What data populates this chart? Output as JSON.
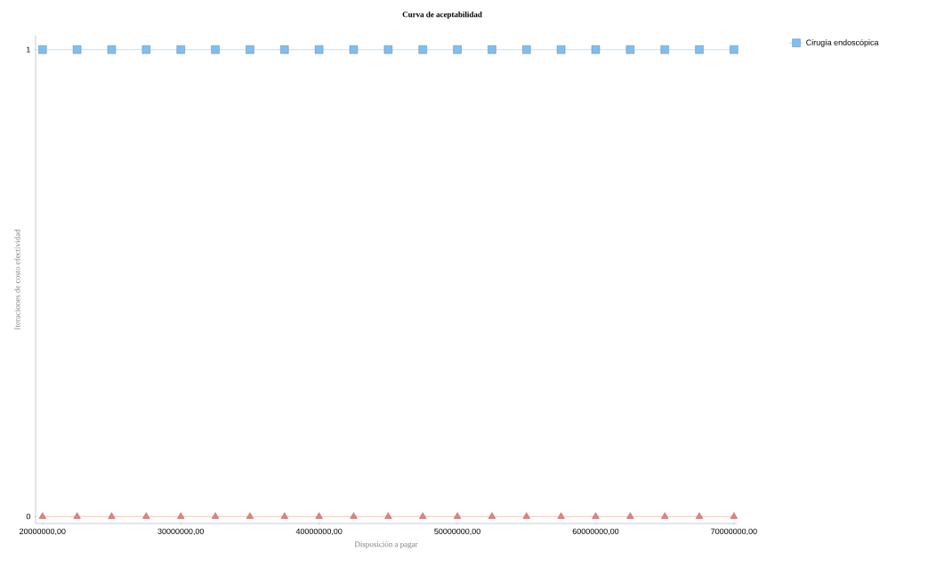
{
  "chart_data": {
    "type": "line",
    "title": "Curva de aceptabilidad",
    "xlabel": "Disposición a pagar",
    "ylabel": "Iteraciones de costo efectividad",
    "x": [
      20000000,
      22500000,
      25000000,
      27500000,
      30000000,
      32500000,
      35000000,
      37500000,
      40000000,
      42500000,
      45000000,
      47500000,
      50000000,
      52500000,
      55000000,
      57500000,
      60000000,
      62500000,
      65000000,
      67500000,
      70000000
    ],
    "series": [
      {
        "name": "Cirugía endoscópica",
        "color": "#63aee8",
        "marker": "square",
        "values": [
          1,
          1,
          1,
          1,
          1,
          1,
          1,
          1,
          1,
          1,
          1,
          1,
          1,
          1,
          1,
          1,
          1,
          1,
          1,
          1,
          1
        ]
      },
      {
        "color": "#e0625c",
        "marker": "triangle",
        "values": [
          0,
          0,
          0,
          0,
          0,
          0,
          0,
          0,
          0,
          0,
          0,
          0,
          0,
          0,
          0,
          0,
          0,
          0,
          0,
          0,
          0
        ]
      }
    ],
    "xlim": [
      19500000,
      70200000
    ],
    "ylim": [
      -0.015,
      1.03
    ],
    "xticks": [
      {
        "value": 20000000,
        "label": "20000000,00"
      },
      {
        "value": 30000000,
        "label": "30000000,00"
      },
      {
        "value": 40000000,
        "label": "40000000,00"
      },
      {
        "value": 50000000,
        "label": "50000000,00"
      },
      {
        "value": 60000000,
        "label": "60000000,00"
      },
      {
        "value": 70000000,
        "label": "70000000,00"
      }
    ],
    "yticks": [
      0,
      1
    ],
    "grid": false,
    "legend": "top right",
    "line_style": "solid"
  }
}
